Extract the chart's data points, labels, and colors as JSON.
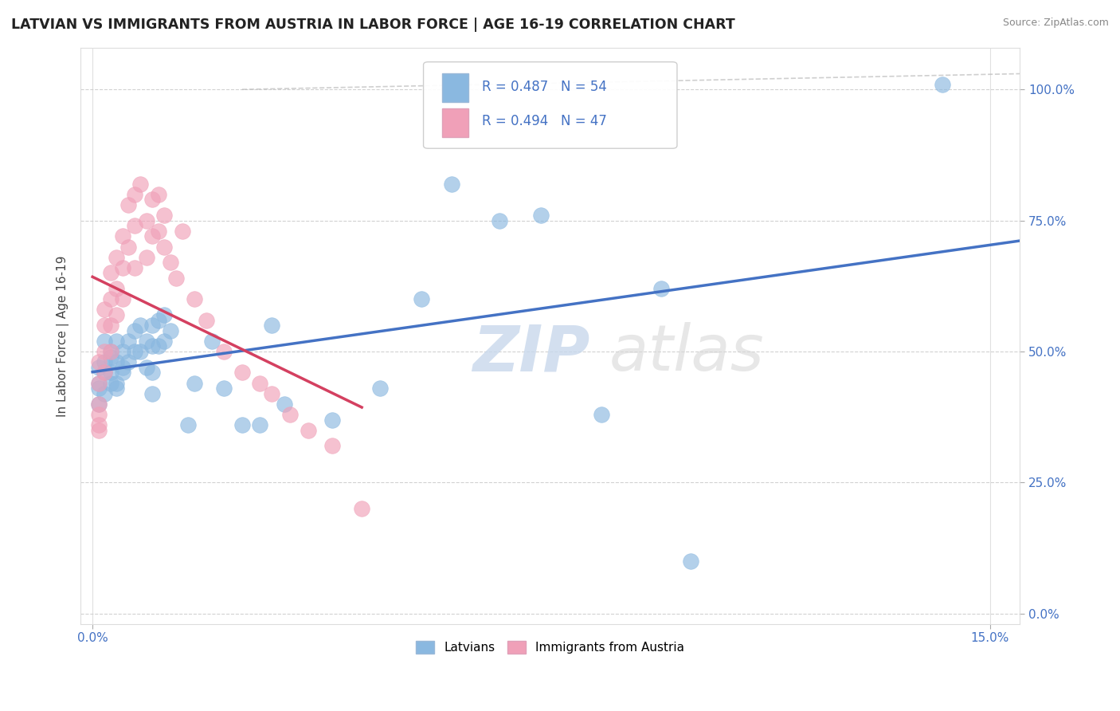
{
  "title": "LATVIAN VS IMMIGRANTS FROM AUSTRIA IN LABOR FORCE | AGE 16-19 CORRELATION CHART",
  "source": "Source: ZipAtlas.com",
  "ylabel": "In Labor Force | Age 16-19",
  "xlim": [
    -0.002,
    0.155
  ],
  "ylim": [
    -0.02,
    1.08
  ],
  "ytick_vals": [
    0.0,
    0.25,
    0.5,
    0.75,
    1.0
  ],
  "ytick_labels": [
    "0.0%",
    "25.0%",
    "50.0%",
    "75.0%",
    "100.0%"
  ],
  "xtick_vals": [
    0.0,
    0.15
  ],
  "xtick_labels": [
    "0.0%",
    "15.0%"
  ],
  "latvian_color": "#8AB8E0",
  "austria_color": "#F0A0B8",
  "latvian_line_color": "#4472C4",
  "austria_line_color": "#D44060",
  "background_color": "#FFFFFF",
  "grid_color": "#CCCCCC",
  "lv_x": [
    0.001,
    0.001,
    0.002,
    0.002,
    0.001,
    0.001,
    0.002,
    0.003,
    0.003,
    0.002,
    0.003,
    0.003,
    0.004,
    0.004,
    0.004,
    0.005,
    0.005,
    0.004,
    0.005,
    0.006,
    0.006,
    0.007,
    0.007,
    0.008,
    0.008,
    0.009,
    0.009,
    0.01,
    0.01,
    0.01,
    0.01,
    0.011,
    0.011,
    0.012,
    0.012,
    0.013,
    0.016,
    0.017,
    0.02,
    0.022,
    0.025,
    0.028,
    0.03,
    0.032,
    0.04,
    0.048,
    0.055,
    0.06,
    0.068,
    0.075,
    0.085,
    0.095,
    0.1,
    0.142
  ],
  "lv_y": [
    0.47,
    0.43,
    0.52,
    0.48,
    0.44,
    0.4,
    0.46,
    0.5,
    0.46,
    0.42,
    0.49,
    0.44,
    0.52,
    0.48,
    0.44,
    0.5,
    0.47,
    0.43,
    0.46,
    0.52,
    0.48,
    0.54,
    0.5,
    0.55,
    0.5,
    0.52,
    0.47,
    0.55,
    0.51,
    0.46,
    0.42,
    0.56,
    0.51,
    0.57,
    0.52,
    0.54,
    0.36,
    0.44,
    0.52,
    0.43,
    0.36,
    0.36,
    0.55,
    0.4,
    0.37,
    0.43,
    0.6,
    0.82,
    0.75,
    0.76,
    0.38,
    0.62,
    0.1,
    1.01
  ],
  "at_x": [
    0.001,
    0.001,
    0.001,
    0.001,
    0.001,
    0.001,
    0.002,
    0.002,
    0.002,
    0.002,
    0.003,
    0.003,
    0.003,
    0.003,
    0.004,
    0.004,
    0.004,
    0.005,
    0.005,
    0.005,
    0.006,
    0.006,
    0.007,
    0.007,
    0.007,
    0.008,
    0.009,
    0.009,
    0.01,
    0.01,
    0.011,
    0.011,
    0.012,
    0.012,
    0.013,
    0.014,
    0.015,
    0.017,
    0.019,
    0.022,
    0.025,
    0.028,
    0.03,
    0.033,
    0.036,
    0.04,
    0.045
  ],
  "at_y": [
    0.48,
    0.44,
    0.4,
    0.38,
    0.36,
    0.35,
    0.58,
    0.55,
    0.5,
    0.46,
    0.65,
    0.6,
    0.55,
    0.5,
    0.68,
    0.62,
    0.57,
    0.72,
    0.66,
    0.6,
    0.78,
    0.7,
    0.8,
    0.74,
    0.66,
    0.82,
    0.75,
    0.68,
    0.79,
    0.72,
    0.8,
    0.73,
    0.76,
    0.7,
    0.67,
    0.64,
    0.73,
    0.6,
    0.56,
    0.5,
    0.46,
    0.44,
    0.42,
    0.38,
    0.35,
    0.32,
    0.2
  ],
  "watermark_zip_color": "#C8D8EC",
  "watermark_atlas_color": "#D8D8D8"
}
